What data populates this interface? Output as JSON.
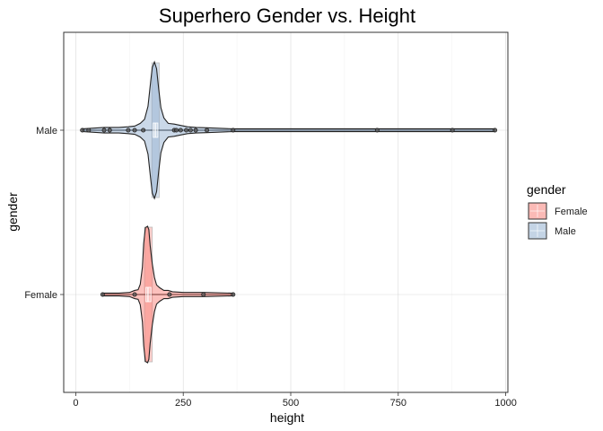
{
  "chart_data": {
    "type": "violin",
    "orientation": "horizontal",
    "title": "Superhero Gender vs. Height",
    "xlabel": "height",
    "ylabel": "gender",
    "xlim": [
      -28,
      1005
    ],
    "x_ticks": [
      0,
      250,
      500,
      750,
      1000
    ],
    "x_tick_labels": [
      "0",
      "250",
      "500",
      "750",
      "1000"
    ],
    "categories": [
      "Female",
      "Male"
    ],
    "grid": true,
    "legend": {
      "title": "gender",
      "position": "right",
      "entries": [
        "Female",
        "Male"
      ]
    },
    "series": [
      {
        "name": "Female",
        "color": "#f8766d",
        "range": [
          62.5,
          366
        ],
        "box": {
          "q1": 163,
          "median": 168,
          "q3": 175
        },
        "peak": 167,
        "points": [
          62.5,
          137,
          218,
          297,
          366
        ],
        "violin": [
          [
            62.5,
            0.02
          ],
          [
            100,
            0.02
          ],
          [
            125,
            0.03
          ],
          [
            137,
            0.06
          ],
          [
            145,
            0.07
          ],
          [
            150,
            0.15
          ],
          [
            155,
            0.4
          ],
          [
            158,
            0.75
          ],
          [
            162,
            0.98
          ],
          [
            167,
            1.0
          ],
          [
            170,
            0.95
          ],
          [
            173,
            0.72
          ],
          [
            178,
            0.45
          ],
          [
            183,
            0.25
          ],
          [
            188,
            0.14
          ],
          [
            195,
            0.1
          ],
          [
            205,
            0.06
          ],
          [
            215,
            0.06
          ],
          [
            225,
            0.04
          ],
          [
            250,
            0.03
          ],
          [
            297,
            0.03
          ],
          [
            366,
            0.02
          ]
        ]
      },
      {
        "name": "Male",
        "color": "#8aa9cc",
        "range": [
          15.2,
          975
        ],
        "box": {
          "q1": 180,
          "median": 185,
          "q3": 191
        },
        "peak": 183,
        "points": [
          15.2,
          30,
          66,
          79,
          122,
          137,
          157,
          229,
          234,
          244,
          257,
          267,
          279,
          305,
          366,
          701,
          876,
          975
        ],
        "violin": [
          [
            15.2,
            0.02
          ],
          [
            30,
            0.025
          ],
          [
            66,
            0.04
          ],
          [
            79,
            0.04
          ],
          [
            100,
            0.04
          ],
          [
            122,
            0.05
          ],
          [
            137,
            0.06
          ],
          [
            150,
            0.1
          ],
          [
            160,
            0.16
          ],
          [
            168,
            0.35
          ],
          [
            174,
            0.7
          ],
          [
            178,
            0.92
          ],
          [
            183,
            1.0
          ],
          [
            188,
            0.9
          ],
          [
            193,
            0.6
          ],
          [
            198,
            0.33
          ],
          [
            205,
            0.18
          ],
          [
            215,
            0.1
          ],
          [
            229,
            0.09
          ],
          [
            244,
            0.07
          ],
          [
            260,
            0.05
          ],
          [
            280,
            0.04
          ],
          [
            305,
            0.035
          ],
          [
            366,
            0.02
          ],
          [
            500,
            0.02
          ],
          [
            701,
            0.02
          ],
          [
            876,
            0.02
          ],
          [
            975,
            0.02
          ]
        ]
      }
    ]
  }
}
